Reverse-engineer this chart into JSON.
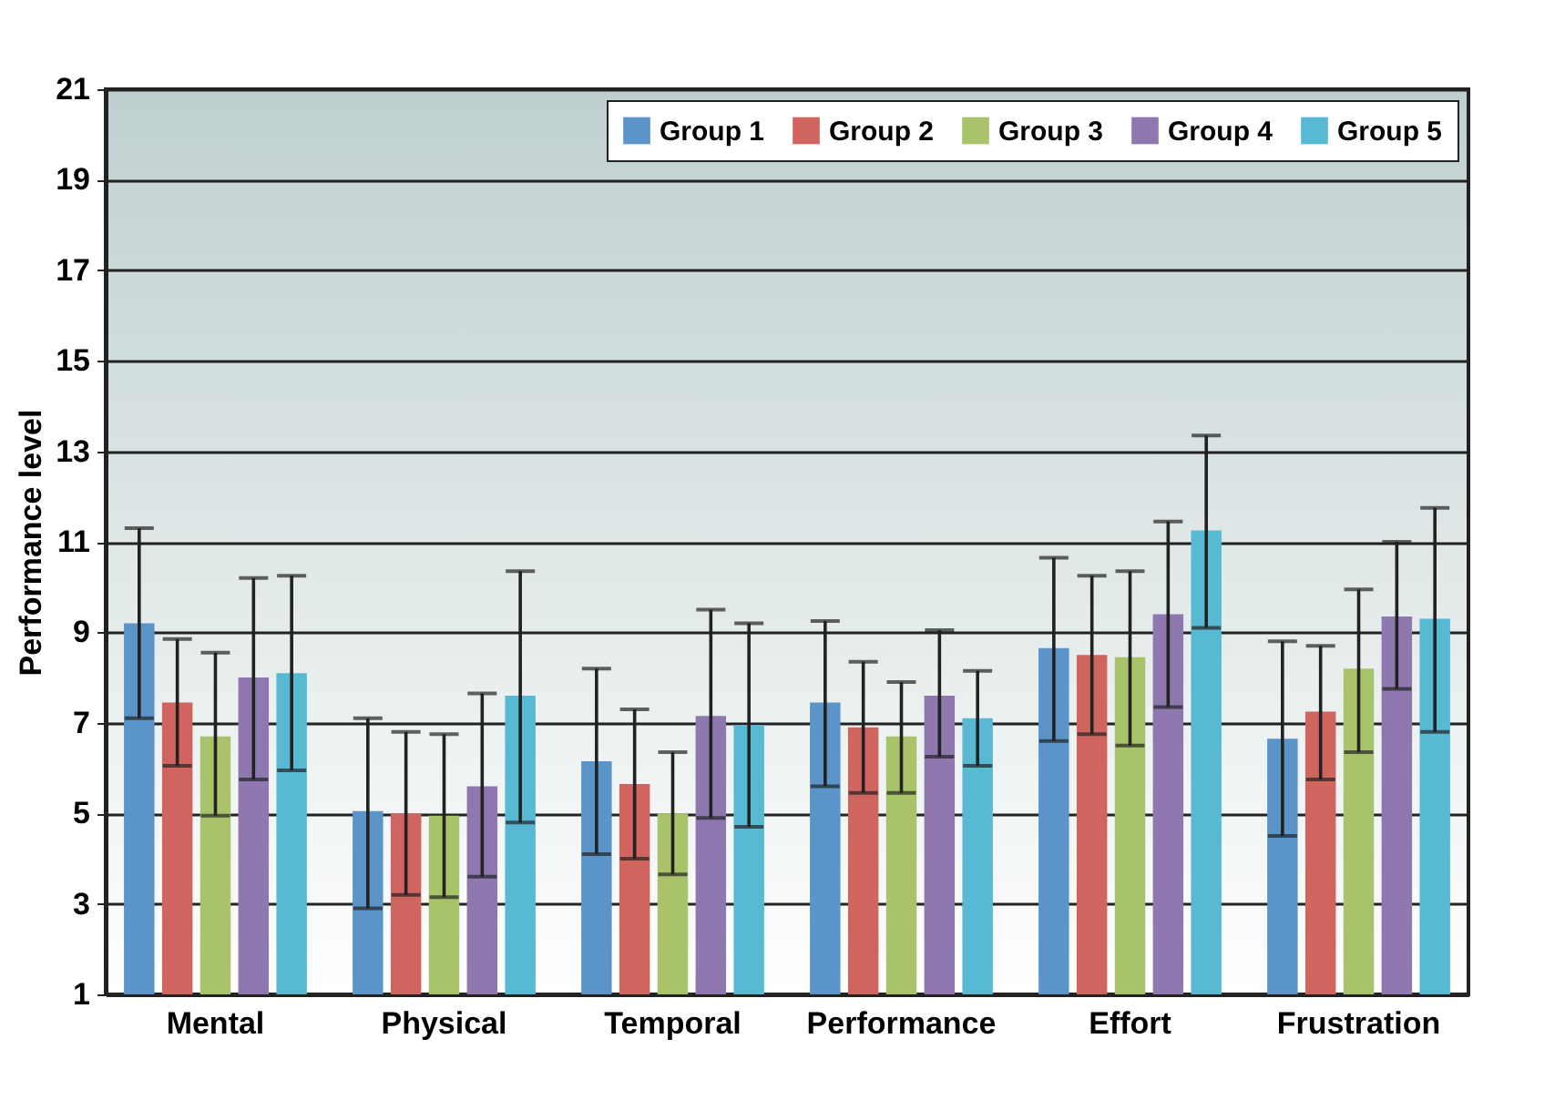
{
  "chart_data": {
    "type": "bar",
    "ylabel": "Performance level",
    "categories": [
      "Mental",
      "Physical",
      "Temporal",
      "Performance",
      "Effort",
      "Frustration"
    ],
    "series": [
      {
        "name": "Group 1",
        "color": "#5b94c8",
        "values": [
          9.2,
          5.05,
          6.15,
          7.45,
          8.65,
          6.65
        ],
        "errors": [
          [
            7.1,
            11.3
          ],
          [
            2.9,
            7.1
          ],
          [
            4.1,
            8.2
          ],
          [
            5.6,
            9.25
          ],
          [
            6.6,
            10.65
          ],
          [
            4.5,
            8.8
          ]
        ]
      },
      {
        "name": "Group 2",
        "color": "#d0655f",
        "values": [
          7.45,
          5.0,
          5.65,
          6.9,
          8.5,
          7.25
        ],
        "errors": [
          [
            6.05,
            8.85
          ],
          [
            3.2,
            6.8
          ],
          [
            4.0,
            7.3
          ],
          [
            5.45,
            8.35
          ],
          [
            6.75,
            10.25
          ],
          [
            5.75,
            8.7
          ]
        ]
      },
      {
        "name": "Group 3",
        "color": "#a9c36a",
        "values": [
          6.7,
          4.95,
          5.0,
          6.7,
          8.45,
          8.2
        ],
        "errors": [
          [
            4.95,
            8.55
          ],
          [
            3.15,
            6.75
          ],
          [
            3.65,
            6.35
          ],
          [
            5.45,
            7.9
          ],
          [
            6.5,
            10.35
          ],
          [
            6.35,
            9.95
          ]
        ]
      },
      {
        "name": "Group 4",
        "color": "#8f78b0",
        "values": [
          8.0,
          5.6,
          7.15,
          7.6,
          9.4,
          9.35
        ],
        "errors": [
          [
            5.75,
            10.2
          ],
          [
            3.6,
            7.65
          ],
          [
            4.9,
            9.5
          ],
          [
            6.25,
            9.05
          ],
          [
            7.35,
            11.45
          ],
          [
            7.75,
            11.0
          ]
        ]
      },
      {
        "name": "Group 5",
        "color": "#58bad2",
        "values": [
          8.1,
          7.6,
          6.95,
          7.1,
          11.25,
          9.3
        ],
        "errors": [
          [
            5.95,
            10.25
          ],
          [
            4.8,
            10.35
          ],
          [
            4.7,
            9.2
          ],
          [
            6.05,
            8.15
          ],
          [
            9.1,
            13.35
          ],
          [
            6.8,
            11.75
          ]
        ]
      }
    ],
    "ylim": [
      1,
      21
    ],
    "yticks": [
      1,
      3,
      5,
      7,
      9,
      11,
      13,
      15,
      17,
      19,
      21
    ],
    "grid": "y",
    "legend": "top right"
  }
}
